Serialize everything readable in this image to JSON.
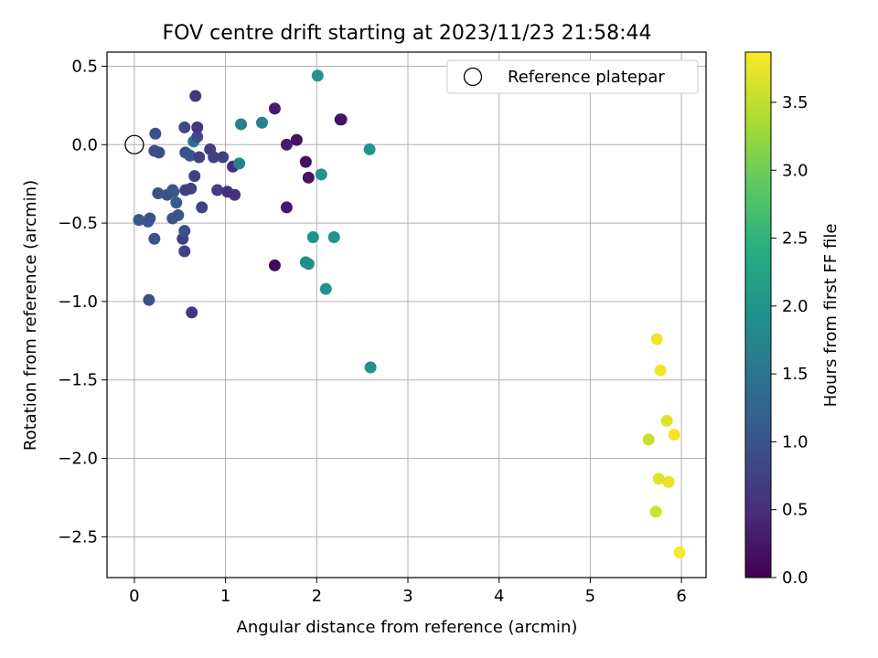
{
  "chart_data": {
    "type": "scatter",
    "title": "FOV centre drift starting at 2023/11/23 21:58:44",
    "xlabel": "Angular distance from reference (arcmin)",
    "ylabel": "Rotation from reference (arcmin)",
    "colorbar_label": "Hours from first FF file",
    "colormap": "viridis",
    "xlim": [
      -0.3,
      6.27
    ],
    "ylim": [
      -2.76,
      0.59
    ],
    "clim": [
      0.0,
      3.87
    ],
    "xticks": [
      "0",
      "1",
      "2",
      "3",
      "4",
      "5",
      "6"
    ],
    "yticks": [
      "0.5",
      "0.0",
      "−0.5",
      "−1.0",
      "−1.5",
      "−2.0",
      "−2.5"
    ],
    "cticks": [
      "0.0",
      "0.5",
      "1.0",
      "1.5",
      "2.0",
      "2.5",
      "3.0",
      "3.5"
    ],
    "grid": true,
    "legend": {
      "position": "top-right",
      "label": "Reference platepar"
    },
    "reference_point": {
      "x": 0.0,
      "y": 0.0
    },
    "points": [
      {
        "x": 0.05,
        "y": -0.48,
        "c": 1.05
      },
      {
        "x": 0.15,
        "y": -0.49,
        "c": 1.05
      },
      {
        "x": 0.17,
        "y": -0.47,
        "c": 1.0
      },
      {
        "x": 0.16,
        "y": -0.99,
        "c": 0.95
      },
      {
        "x": 0.22,
        "y": -0.04,
        "c": 0.9
      },
      {
        "x": 0.23,
        "y": 0.07,
        "c": 1.0
      },
      {
        "x": 0.22,
        "y": -0.6,
        "c": 1.0
      },
      {
        "x": 0.27,
        "y": -0.05,
        "c": 0.9
      },
      {
        "x": 0.26,
        "y": -0.31,
        "c": 0.95
      },
      {
        "x": 0.36,
        "y": -0.32,
        "c": 0.9
      },
      {
        "x": 0.42,
        "y": -0.29,
        "c": 1.0
      },
      {
        "x": 0.42,
        "y": -0.47,
        "c": 1.0
      },
      {
        "x": 0.43,
        "y": -0.3,
        "c": 1.05
      },
      {
        "x": 0.46,
        "y": -0.37,
        "c": 1.1
      },
      {
        "x": 0.48,
        "y": -0.45,
        "c": 1.0
      },
      {
        "x": 0.53,
        "y": -0.6,
        "c": 0.7
      },
      {
        "x": 0.55,
        "y": -0.55,
        "c": 0.95
      },
      {
        "x": 0.55,
        "y": -0.68,
        "c": 0.75
      },
      {
        "x": 0.55,
        "y": 0.11,
        "c": 0.85
      },
      {
        "x": 0.56,
        "y": -0.05,
        "c": 0.9
      },
      {
        "x": 0.56,
        "y": -0.29,
        "c": 0.75
      },
      {
        "x": 0.61,
        "y": -0.07,
        "c": 1.05
      },
      {
        "x": 0.62,
        "y": -0.28,
        "c": 0.75
      },
      {
        "x": 0.63,
        "y": -1.07,
        "c": 0.6
      },
      {
        "x": 0.65,
        "y": 0.02,
        "c": 1.45
      },
      {
        "x": 0.66,
        "y": -0.2,
        "c": 0.75
      },
      {
        "x": 0.67,
        "y": 0.31,
        "c": 0.6
      },
      {
        "x": 0.69,
        "y": 0.05,
        "c": 0.85
      },
      {
        "x": 0.69,
        "y": 0.11,
        "c": 0.6
      },
      {
        "x": 0.71,
        "y": -0.08,
        "c": 0.7
      },
      {
        "x": 0.74,
        "y": -0.4,
        "c": 0.75
      },
      {
        "x": 0.83,
        "y": -0.03,
        "c": 0.7
      },
      {
        "x": 0.87,
        "y": -0.08,
        "c": 0.75
      },
      {
        "x": 0.91,
        "y": -0.29,
        "c": 0.7
      },
      {
        "x": 0.97,
        "y": -0.08,
        "c": 0.75
      },
      {
        "x": 1.02,
        "y": -0.3,
        "c": 0.55
      },
      {
        "x": 1.08,
        "y": -0.14,
        "c": 0.5
      },
      {
        "x": 1.1,
        "y": -0.32,
        "c": 0.55
      },
      {
        "x": 1.15,
        "y": -0.12,
        "c": 1.7
      },
      {
        "x": 1.17,
        "y": 0.13,
        "c": 1.7
      },
      {
        "x": 1.4,
        "y": 0.14,
        "c": 1.7
      },
      {
        "x": 1.54,
        "y": 0.23,
        "c": 0.3
      },
      {
        "x": 1.54,
        "y": -0.77,
        "c": 0.1
      },
      {
        "x": 1.67,
        "y": 0.0,
        "c": 0.3
      },
      {
        "x": 1.67,
        "y": -0.4,
        "c": 0.25
      },
      {
        "x": 1.78,
        "y": 0.03,
        "c": 0.2
      },
      {
        "x": 1.88,
        "y": -0.11,
        "c": 0.15
      },
      {
        "x": 1.88,
        "y": -0.75,
        "c": 1.9
      },
      {
        "x": 1.91,
        "y": -0.21,
        "c": 0.2
      },
      {
        "x": 1.91,
        "y": -0.76,
        "c": 1.9
      },
      {
        "x": 1.96,
        "y": -0.59,
        "c": 1.95
      },
      {
        "x": 2.01,
        "y": 0.44,
        "c": 2.0
      },
      {
        "x": 2.05,
        "y": -0.19,
        "c": 1.95
      },
      {
        "x": 2.1,
        "y": -0.92,
        "c": 1.95
      },
      {
        "x": 2.19,
        "y": -0.59,
        "c": 1.95
      },
      {
        "x": 2.26,
        "y": 0.16,
        "c": 0.1
      },
      {
        "x": 2.27,
        "y": 0.16,
        "c": 0.2
      },
      {
        "x": 2.58,
        "y": -0.03,
        "c": 2.0
      },
      {
        "x": 2.59,
        "y": -1.42,
        "c": 1.95
      },
      {
        "x": 5.64,
        "y": -1.88,
        "c": 3.55
      },
      {
        "x": 5.72,
        "y": -2.34,
        "c": 3.6
      },
      {
        "x": 5.73,
        "y": -1.24,
        "c": 3.8
      },
      {
        "x": 5.75,
        "y": -2.13,
        "c": 3.7
      },
      {
        "x": 5.77,
        "y": -1.44,
        "c": 3.8
      },
      {
        "x": 5.84,
        "y": -1.76,
        "c": 3.7
      },
      {
        "x": 5.86,
        "y": -2.15,
        "c": 3.75
      },
      {
        "x": 5.92,
        "y": -1.85,
        "c": 3.8
      },
      {
        "x": 5.98,
        "y": -2.6,
        "c": 3.85
      }
    ]
  }
}
